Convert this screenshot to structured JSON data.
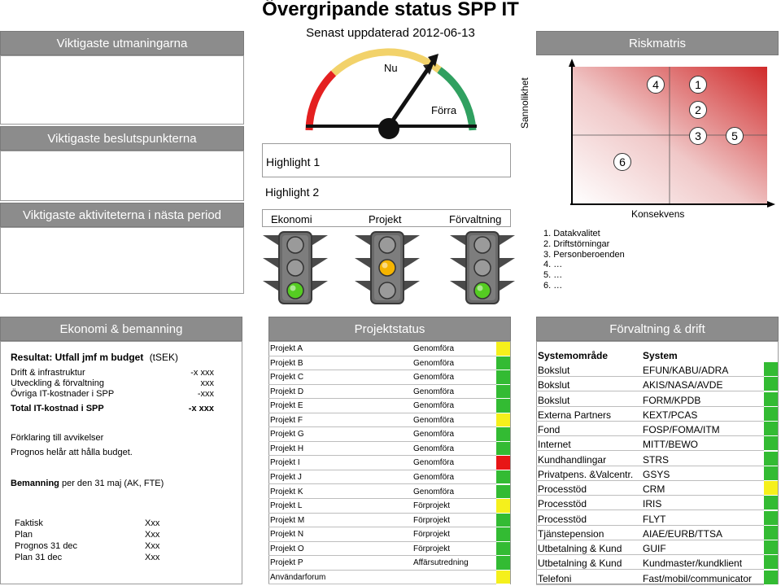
{
  "title": "Övergripande status SPP IT",
  "updated": "Senast uppdaterad 2012-06-13",
  "left_panels": {
    "challenges": "Viktigaste utmaningarna",
    "decisions": "Viktigaste beslutspunkterna",
    "activities": "Viktigaste aktiviteterna i nästa period"
  },
  "gauge": {
    "now_label": "Nu",
    "prev_label": "Förra"
  },
  "highlights": [
    "Highlight 1",
    "Highlight 2"
  ],
  "traffic_lights": {
    "labels": [
      "Ekonomi",
      "Projekt",
      "Förvaltning"
    ],
    "active": [
      "green",
      "yellow",
      "green"
    ]
  },
  "risk": {
    "title": "Riskmatris",
    "y_label": "Sannolikhet",
    "x_label": "Konsekvens",
    "markers": [
      "4",
      "1",
      "2",
      "3",
      "5",
      "6"
    ],
    "items": [
      "1.  Datakvalitet",
      "2.  Driftstörningar",
      "3.  Personberoenden",
      "4.  …",
      "5.  …",
      "6.  …"
    ]
  },
  "economy": {
    "header": "Ekonomi & bemanning",
    "result_bold": "Resultat: Utfall jmf m budget",
    "result_unit": "(tSEK)",
    "rows": [
      {
        "label": "Drift & infrastruktur",
        "value": "-x xxx"
      },
      {
        "label": "Utveckling & förvaltning",
        "value": "xxx"
      },
      {
        "label": "Övriga IT-kostnader i SPP",
        "value": "-xxx"
      }
    ],
    "total_label": "Total IT-kostnad i SPP",
    "total_value": "-x xxx",
    "explain": "Förklaring till avvikelser",
    "prognosis": "Prognos helår att hålla budget.",
    "staff_bold": "Bemanning",
    "staff_rest": " per den 31 maj (AK, FTE)",
    "staff_rows": [
      {
        "label": "Faktisk",
        "value": "Xxx"
      },
      {
        "label": "Plan",
        "value": "Xxx"
      },
      {
        "label": "Prognos 31 dec",
        "value": "Xxx"
      },
      {
        "label": "Plan 31 dec",
        "value": "Xxx"
      }
    ]
  },
  "projects": {
    "header": "Projektstatus",
    "rows": [
      {
        "name": "Projekt A",
        "phase": "Genomföra",
        "status": "#f5f01c"
      },
      {
        "name": "Projekt B",
        "phase": "Genomföra",
        "status": "#33bb33"
      },
      {
        "name": "Projekt C",
        "phase": "Genomföra",
        "status": "#33bb33"
      },
      {
        "name": "Projekt D",
        "phase": "Genomföra",
        "status": "#33bb33"
      },
      {
        "name": "Projekt E",
        "phase": "Genomföra",
        "status": "#33bb33"
      },
      {
        "name": "Projekt F",
        "phase": "Genomföra",
        "status": "#f5f01c"
      },
      {
        "name": "Projekt G",
        "phase": "Genomföra",
        "status": "#33bb33"
      },
      {
        "name": "Projekt H",
        "phase": "Genomföra",
        "status": "#33bb33"
      },
      {
        "name": "Projekt I",
        "phase": "Genomföra",
        "status": "#e81616"
      },
      {
        "name": "Projekt J",
        "phase": "Genomföra",
        "status": "#33bb33"
      },
      {
        "name": "Projekt K",
        "phase": "Genomföra",
        "status": "#33bb33"
      },
      {
        "name": "Projekt L",
        "phase": "Förprojekt",
        "status": "#f5f01c"
      },
      {
        "name": "Projekt M",
        "phase": "Förprojekt",
        "status": "#33bb33"
      },
      {
        "name": "Projekt N",
        "phase": "Förprojekt",
        "status": "#33bb33"
      },
      {
        "name": "Projekt O",
        "phase": "Förprojekt",
        "status": "#33bb33"
      },
      {
        "name": "Projekt P",
        "phase": "Affärsutredning",
        "status": "#33bb33"
      },
      {
        "name": "Användarforum",
        "phase": "",
        "status": "#f5f01c"
      }
    ]
  },
  "operations": {
    "header": "Förvaltning & drift",
    "col_area": "Systemområde",
    "col_system": "System",
    "rows": [
      {
        "area": "Bokslut",
        "system": "EFUN/KABU/ADRA",
        "status": "#33bb33"
      },
      {
        "area": "Bokslut",
        "system": "AKIS/NASA/AVDE",
        "status": "#33bb33"
      },
      {
        "area": "Bokslut",
        "system": "FORM/KPDB",
        "status": "#33bb33"
      },
      {
        "area": "Externa Partners",
        "system": "KEXT/PCAS",
        "status": "#33bb33"
      },
      {
        "area": "Fond",
        "system": "FOSP/FOMA/ITM",
        "status": "#33bb33"
      },
      {
        "area": "Internet",
        "system": "MITT/BEWO",
        "status": "#33bb33"
      },
      {
        "area": "Kundhandlingar",
        "system": "STRS",
        "status": "#33bb33"
      },
      {
        "area": "Privatpens. &Valcentr.",
        "system": "GSYS",
        "status": "#33bb33"
      },
      {
        "area": "Processtöd",
        "system": "CRM",
        "status": "#f5f01c"
      },
      {
        "area": "Processtöd",
        "system": "IRIS",
        "status": "#33bb33"
      },
      {
        "area": "Processtöd",
        "system": "FLYT",
        "status": "#33bb33"
      },
      {
        "area": "Tjänstepension",
        "system": "AIAE/EURB/TTSA",
        "status": "#33bb33"
      },
      {
        "area": "Utbetalning & Kund",
        "system": "GUIF",
        "status": "#33bb33"
      },
      {
        "area": "Utbetalning & Kund",
        "system": "Kundmaster/kundklient",
        "status": "#33bb33"
      },
      {
        "area": "Telefoni",
        "system": "Fast/mobil/communicator",
        "status": "#33bb33"
      }
    ]
  }
}
